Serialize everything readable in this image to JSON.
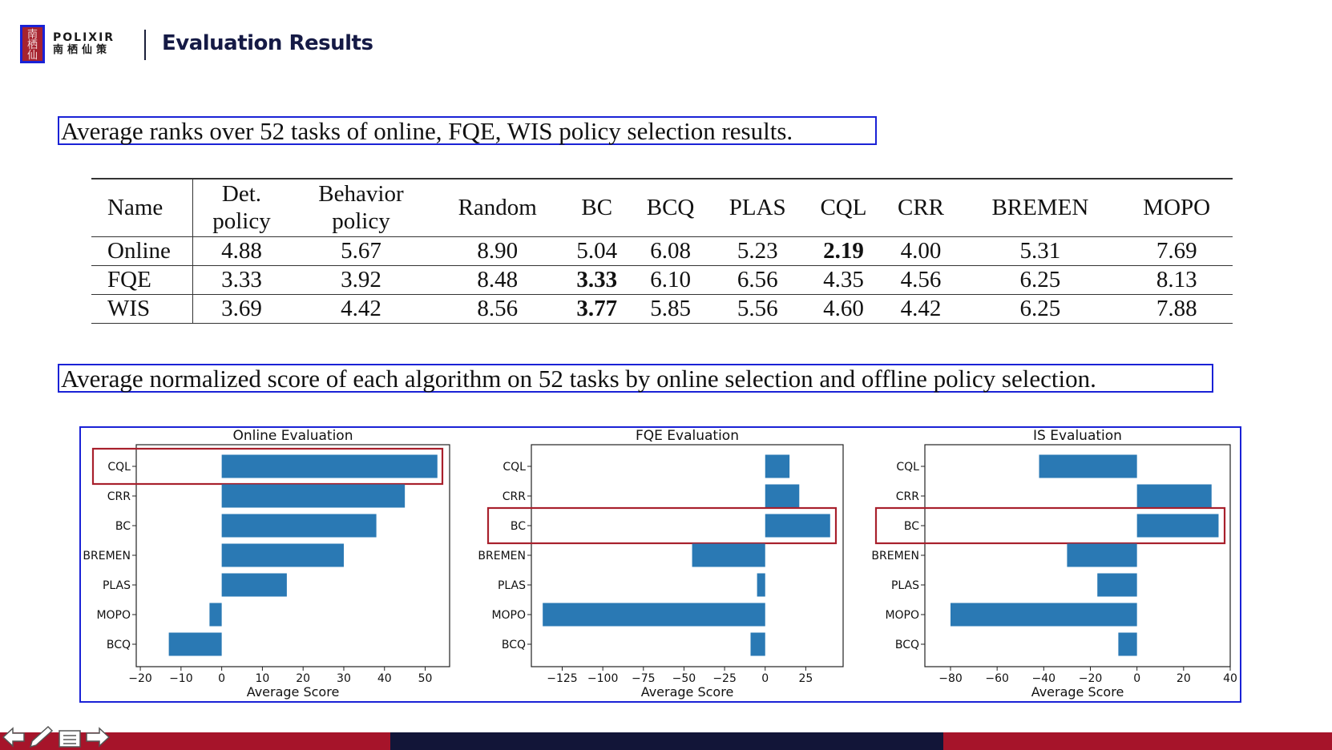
{
  "header": {
    "brand": "POLIXIR",
    "brand_sub": "南栖仙策",
    "title": "Evaluation Results"
  },
  "captions": {
    "rank_caption": "Average ranks over 52 tasks of online, FQE, WIS policy selection results.",
    "score_caption": "Average normalized score of each algorithm on 52 tasks by online selection and offline policy selection."
  },
  "rank_table": {
    "columns": [
      "Name",
      "Det.\npolicy",
      "Behavior\npolicy",
      "Random",
      "BC",
      "BCQ",
      "PLAS",
      "CQL",
      "CRR",
      "BREMEN",
      "MOPO"
    ],
    "rows": [
      {
        "name": "Online",
        "values": [
          "4.88",
          "5.67",
          "8.90",
          "5.04",
          "6.08",
          "5.23",
          "2.19",
          "4.00",
          "5.31",
          "7.69"
        ],
        "bold_index": 6
      },
      {
        "name": "FQE",
        "values": [
          "3.33",
          "3.92",
          "8.48",
          "3.33",
          "6.10",
          "6.56",
          "4.35",
          "4.56",
          "6.25",
          "8.13"
        ],
        "bold_index": 3
      },
      {
        "name": "WIS",
        "values": [
          "3.69",
          "4.42",
          "8.56",
          "3.77",
          "5.85",
          "5.56",
          "4.60",
          "4.42",
          "6.25",
          "7.88"
        ],
        "bold_index": 3
      }
    ]
  },
  "chart_data": [
    {
      "type": "bar",
      "orientation": "horizontal",
      "title": "Online Evaluation",
      "xlabel": "Average Score",
      "categories": [
        "CQL",
        "CRR",
        "BC",
        "BREMEN",
        "PLAS",
        "MOPO",
        "BCQ"
      ],
      "values": [
        53,
        45,
        38,
        30,
        16,
        -3,
        -13
      ],
      "xlim": [
        -21,
        56
      ],
      "xticks": [
        -20,
        -10,
        0,
        10,
        20,
        30,
        40,
        50
      ],
      "xtick_labels": [
        "−20",
        "−10",
        "0",
        "10",
        "20",
        "30",
        "40",
        "50"
      ],
      "highlight": "CQL",
      "bar_color": "#2a79b4",
      "highlight_color": "#a8202c"
    },
    {
      "type": "bar",
      "orientation": "horizontal",
      "title": "FQE Evaluation",
      "xlabel": "Average Score",
      "categories": [
        "CQL",
        "CRR",
        "BC",
        "BREMEN",
        "PLAS",
        "MOPO",
        "BCQ"
      ],
      "values": [
        15,
        21,
        40,
        -45,
        -5,
        -137,
        -9
      ],
      "xlim": [
        -144,
        48
      ],
      "xticks": [
        -125,
        -100,
        -75,
        -50,
        -25,
        0,
        25
      ],
      "xtick_labels": [
        "−125",
        "−100",
        "−75",
        "−50",
        "−25",
        "0",
        "25"
      ],
      "highlight": "BC",
      "bar_color": "#2a79b4",
      "highlight_color": "#a8202c"
    },
    {
      "type": "bar",
      "orientation": "horizontal",
      "title": "IS Evaluation",
      "xlabel": "Average Score",
      "categories": [
        "CQL",
        "CRR",
        "BC",
        "BREMEN",
        "PLAS",
        "MOPO",
        "BCQ"
      ],
      "values": [
        -42,
        32,
        35,
        -30,
        -17,
        -80,
        -8
      ],
      "xlim": [
        -91,
        40
      ],
      "xticks": [
        -80,
        -60,
        -40,
        -20,
        0,
        20,
        40
      ],
      "xtick_labels": [
        "−80",
        "−60",
        "−40",
        "−20",
        "0",
        "20",
        "40"
      ],
      "highlight": "BC",
      "bar_color": "#2a79b4",
      "highlight_color": "#a8202c"
    }
  ],
  "footer": {
    "colors": {
      "accent_red": "#a6142a",
      "navy": "#121538"
    },
    "nav_icons": [
      "arrow-left-icon",
      "pen-icon",
      "menu-icon",
      "arrow-right-icon"
    ]
  }
}
